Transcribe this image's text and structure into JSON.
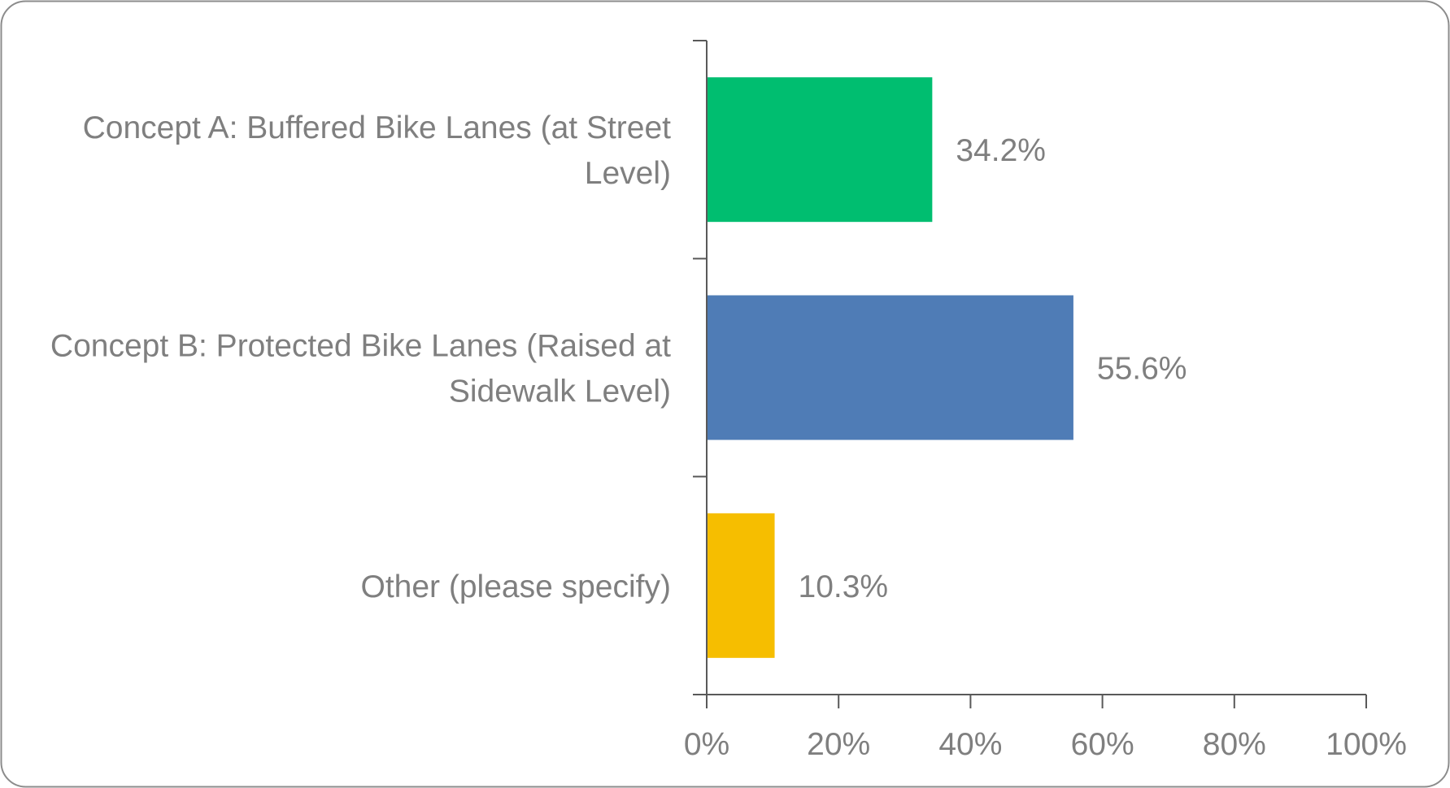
{
  "chart_data": {
    "type": "bar",
    "orientation": "horizontal",
    "title": "",
    "xlabel": "",
    "ylabel": "",
    "xlim": [
      0,
      100
    ],
    "grid": false,
    "legend": "none",
    "categories": [
      [
        "Concept A: Buffered Bike Lanes (at Street",
        "Level)"
      ],
      [
        "Concept B: Protected Bike Lanes (Raised at",
        "Sidewalk Level)"
      ],
      [
        "Other (please specify)"
      ]
    ],
    "values": [
      34.2,
      55.6,
      10.3
    ],
    "value_labels": [
      "34.2%",
      "55.6%",
      "10.3%"
    ],
    "colors": [
      "#00BE70",
      "#4F7CB6",
      "#F6BE00"
    ],
    "ticks": [
      0,
      20,
      40,
      60,
      80,
      100
    ],
    "tick_labels": [
      "0%",
      "20%",
      "40%",
      "60%",
      "80%",
      "100%"
    ]
  },
  "style": {
    "text_color": "#7F7F7F",
    "axis_color": "#595959",
    "frame_color": "#8C8C8C"
  }
}
